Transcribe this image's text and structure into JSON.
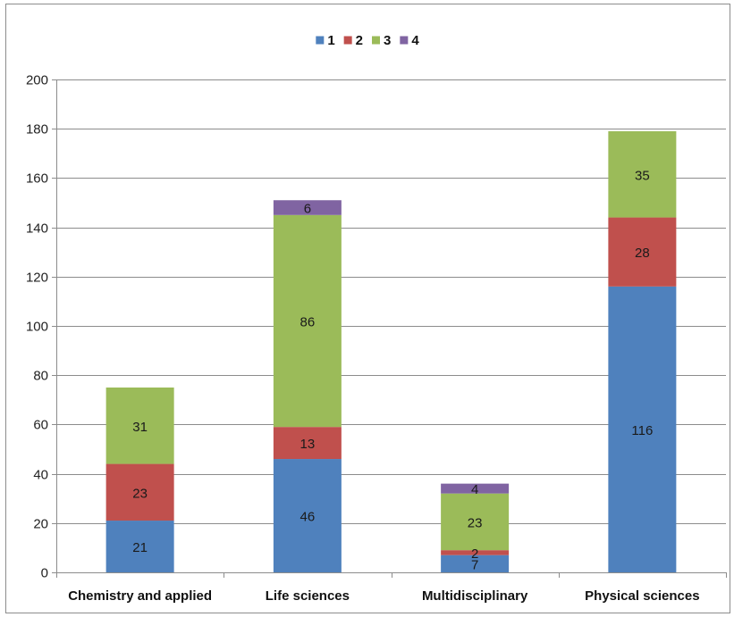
{
  "chart_data": {
    "type": "bar",
    "stacked": true,
    "title": "",
    "xlabel": "",
    "ylabel": "",
    "categories": [
      "Chemistry and applied",
      "Life sciences",
      "Multidisciplinary",
      "Physical sciences"
    ],
    "series": [
      {
        "name": "1",
        "color": "#4f81bd",
        "values": [
          21,
          46,
          7,
          116
        ]
      },
      {
        "name": "2",
        "color": "#c0504d",
        "values": [
          23,
          13,
          2,
          28
        ]
      },
      {
        "name": "3",
        "color": "#9bbb59",
        "values": [
          31,
          86,
          23,
          35
        ]
      },
      {
        "name": "4",
        "color": "#8064a2",
        "values": [
          null,
          6,
          4,
          null
        ]
      }
    ],
    "ylim": [
      0,
      200
    ],
    "yticks": [
      0,
      20,
      40,
      60,
      80,
      100,
      120,
      140,
      160,
      180,
      200
    ],
    "grid": true,
    "legend_position": "top"
  }
}
